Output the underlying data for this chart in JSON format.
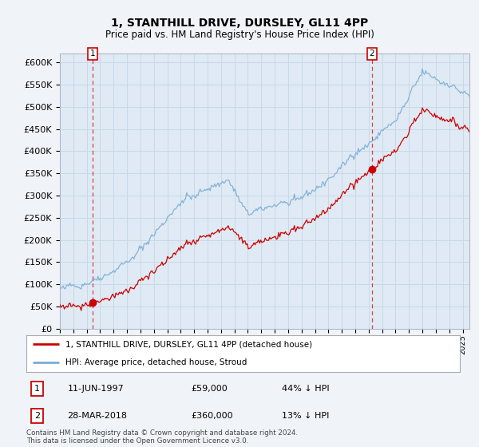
{
  "title": "1, STANTHILL DRIVE, DURSLEY, GL11 4PP",
  "subtitle": "Price paid vs. HM Land Registry's House Price Index (HPI)",
  "legend_line1": "1, STANTHILL DRIVE, DURSLEY, GL11 4PP (detached house)",
  "legend_line2": "HPI: Average price, detached house, Stroud",
  "annotation1_date": "11-JUN-1997",
  "annotation1_price": "£59,000",
  "annotation1_hpi": "44% ↓ HPI",
  "annotation1_year": 1997.45,
  "annotation1_value": 59000,
  "annotation2_date": "28-MAR-2018",
  "annotation2_price": "£360,000",
  "annotation2_hpi": "13% ↓ HPI",
  "annotation2_year": 2018.23,
  "annotation2_value": 360000,
  "footer": "Contains HM Land Registry data © Crown copyright and database right 2024.\nThis data is licensed under the Open Government Licence v3.0.",
  "ylim_max": 620000,
  "xlim_start": 1995.0,
  "xlim_end": 2025.5,
  "bg_color": "#f0f4f8",
  "plot_bg_color": "#e0eaf4",
  "hpi_color": "#7aadd4",
  "price_color": "#cc0000",
  "grid_color": "#c8d8e8",
  "title_fontsize": 10,
  "subtitle_fontsize": 8.5,
  "tick_fontsize": 7,
  "ytick_fontsize": 8
}
